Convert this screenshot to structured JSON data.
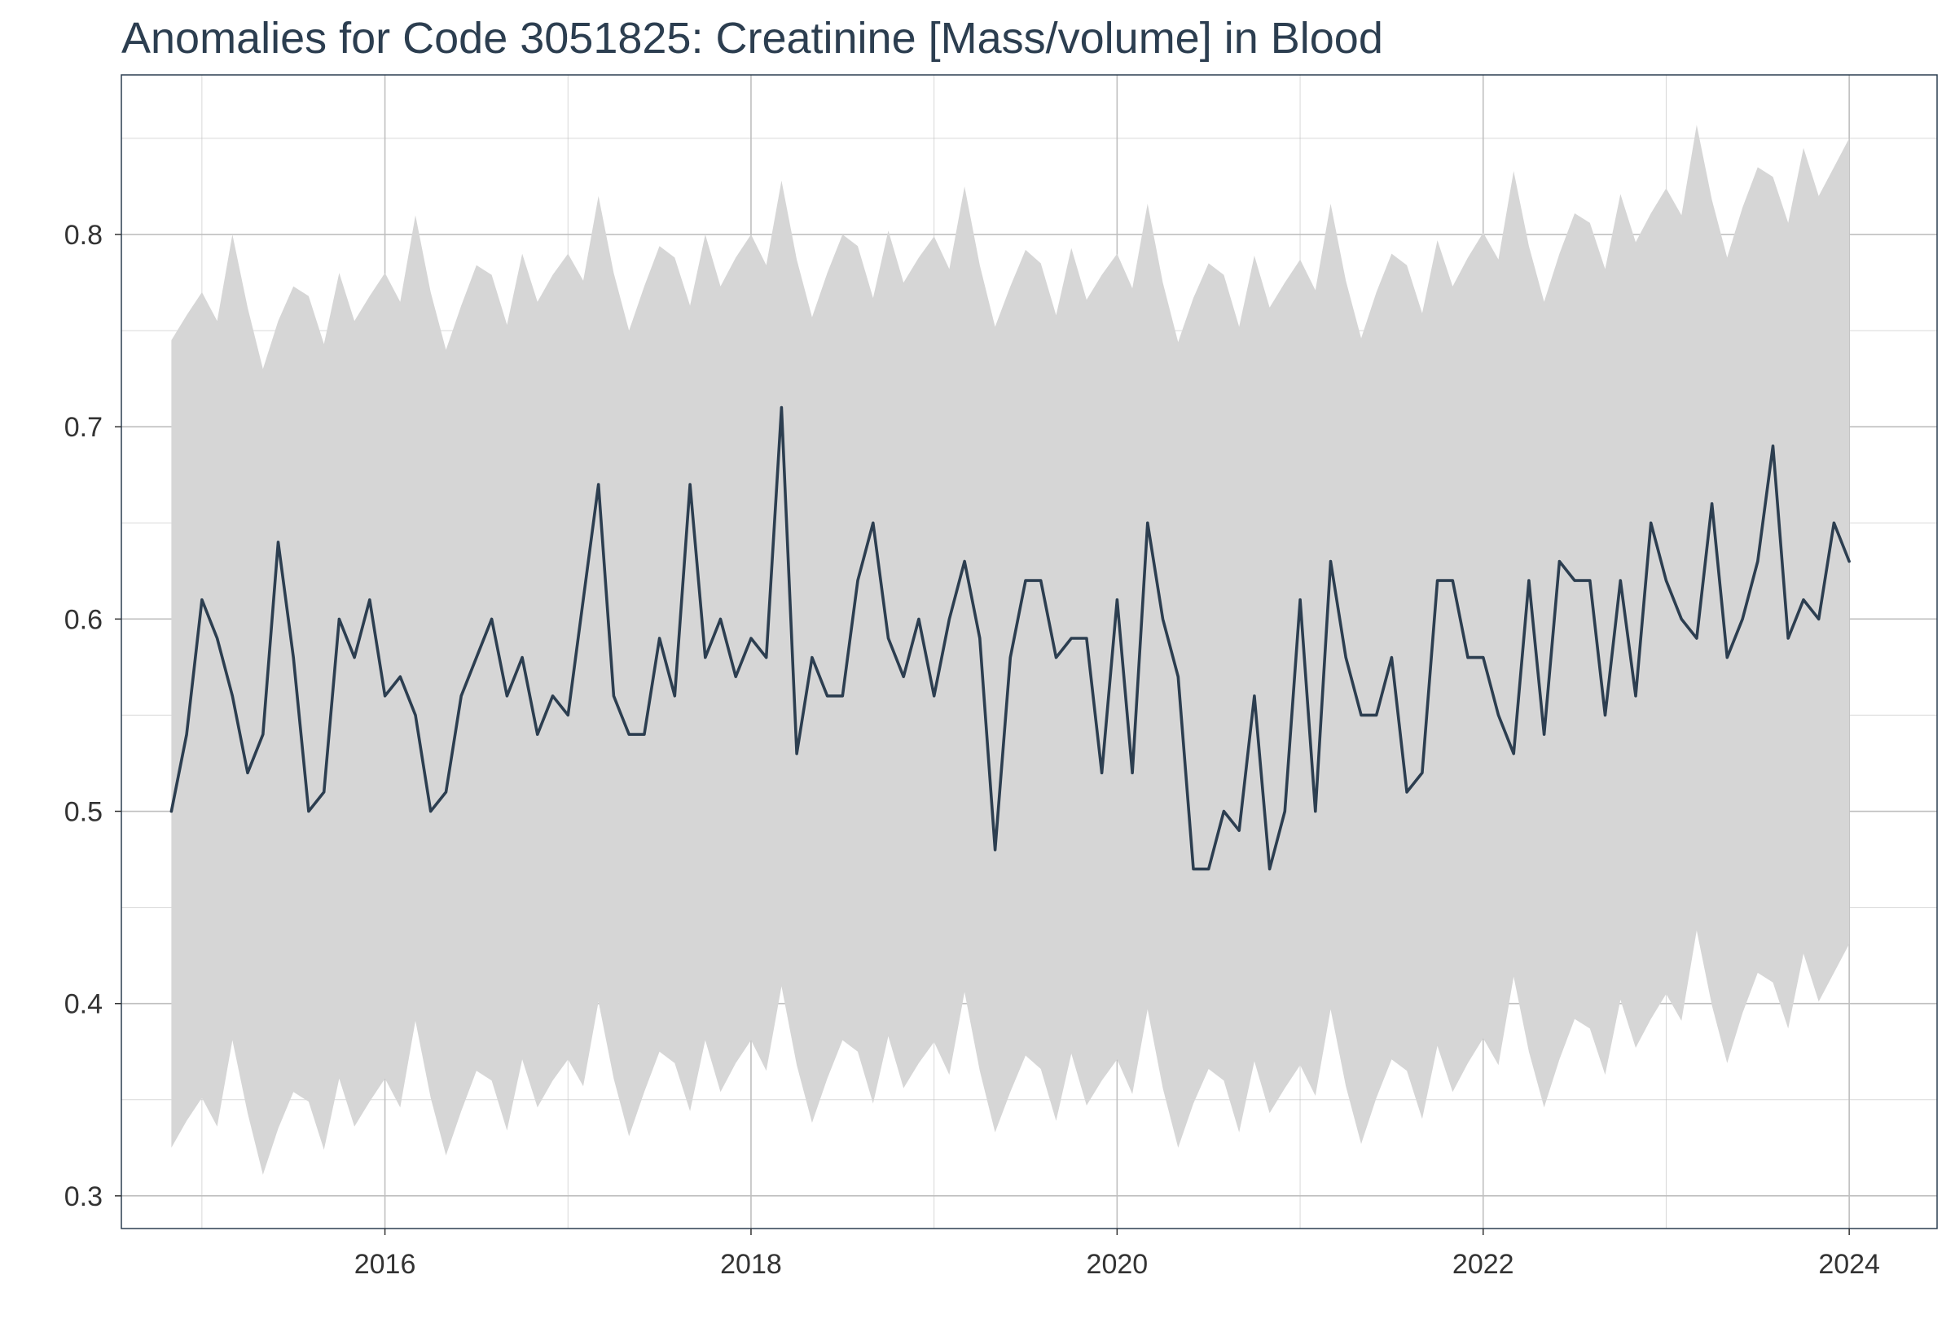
{
  "chart_data": {
    "type": "line",
    "title": "Anomalies for Code 3051825: Creatinine [Mass/volume] in Blood",
    "xlabel": "",
    "ylabel": "",
    "x_range": [
      2014.56,
      2024.48
    ],
    "y_range": [
      0.283,
      0.883
    ],
    "x_ticks": [
      {
        "value": 2016,
        "label": "2016"
      },
      {
        "value": 2018,
        "label": "2018"
      },
      {
        "value": 2020,
        "label": "2020"
      },
      {
        "value": 2022,
        "label": "2022"
      },
      {
        "value": 2024,
        "label": "2024"
      }
    ],
    "y_ticks": [
      {
        "value": 0.3,
        "label": "0.3"
      },
      {
        "value": 0.4,
        "label": "0.4"
      },
      {
        "value": 0.5,
        "label": "0.5"
      },
      {
        "value": 0.6,
        "label": "0.6"
      },
      {
        "value": 0.7,
        "label": "0.7"
      },
      {
        "value": 0.8,
        "label": "0.8"
      }
    ],
    "grid": true,
    "x_start": "2014-11",
    "x_interval": "monthly",
    "series": [
      {
        "kind": "line",
        "color": "#2c3e50",
        "values": [
          0.5,
          0.54,
          0.61,
          0.59,
          0.56,
          0.52,
          0.54,
          0.64,
          0.58,
          0.5,
          0.51,
          0.6,
          0.58,
          0.61,
          0.56,
          0.57,
          0.55,
          0.5,
          0.51,
          0.56,
          0.58,
          0.6,
          0.56,
          0.58,
          0.54,
          0.56,
          0.55,
          0.61,
          0.67,
          0.56,
          0.54,
          0.54,
          0.59,
          0.56,
          0.67,
          0.58,
          0.6,
          0.57,
          0.59,
          0.58,
          0.71,
          0.53,
          0.58,
          0.56,
          0.56,
          0.62,
          0.65,
          0.59,
          0.57,
          0.6,
          0.56,
          0.6,
          0.63,
          0.59,
          0.48,
          0.58,
          0.62,
          0.62,
          0.58,
          0.59,
          0.59,
          0.52,
          0.61,
          0.52,
          0.65,
          0.6,
          0.57,
          0.47,
          0.47,
          0.5,
          0.49,
          0.56,
          0.47,
          0.5,
          0.61,
          0.5,
          0.63,
          0.58,
          0.55,
          0.55,
          0.58,
          0.51,
          0.52,
          0.62,
          0.62,
          0.58,
          0.58,
          0.55,
          0.53,
          0.62,
          0.54,
          0.63,
          0.62,
          0.62,
          0.55,
          0.62,
          0.56,
          0.65,
          0.62,
          0.6,
          0.59,
          0.66,
          0.58,
          0.6,
          0.63,
          0.69,
          0.59,
          0.61,
          0.6,
          0.65,
          0.63
        ]
      },
      {
        "kind": "band",
        "color": "#d6d6d6",
        "upper": [
          0.745,
          0.758,
          0.77,
          0.755,
          0.8,
          0.762,
          0.73,
          0.755,
          0.773,
          0.768,
          0.743,
          0.78,
          0.755,
          0.768,
          0.78,
          0.765,
          0.81,
          0.77,
          0.74,
          0.763,
          0.784,
          0.779,
          0.753,
          0.79,
          0.765,
          0.779,
          0.79,
          0.776,
          0.82,
          0.78,
          0.75,
          0.773,
          0.794,
          0.788,
          0.763,
          0.8,
          0.773,
          0.788,
          0.8,
          0.784,
          0.828,
          0.787,
          0.757,
          0.78,
          0.8,
          0.794,
          0.767,
          0.802,
          0.775,
          0.788,
          0.799,
          0.782,
          0.825,
          0.784,
          0.752,
          0.773,
          0.792,
          0.785,
          0.758,
          0.793,
          0.766,
          0.779,
          0.79,
          0.772,
          0.816,
          0.775,
          0.744,
          0.767,
          0.785,
          0.779,
          0.752,
          0.789,
          0.762,
          0.775,
          0.787,
          0.771,
          0.816,
          0.776,
          0.746,
          0.77,
          0.79,
          0.784,
          0.759,
          0.797,
          0.773,
          0.788,
          0.801,
          0.787,
          0.833,
          0.794,
          0.765,
          0.79,
          0.811,
          0.806,
          0.782,
          0.821,
          0.796,
          0.811,
          0.824,
          0.81,
          0.857,
          0.818,
          0.788,
          0.814,
          0.835,
          0.83,
          0.806,
          0.845,
          0.82,
          0.835,
          0.85
        ],
        "lower": [
          0.325,
          0.339,
          0.351,
          0.336,
          0.381,
          0.343,
          0.311,
          0.335,
          0.354,
          0.349,
          0.324,
          0.361,
          0.336,
          0.349,
          0.361,
          0.346,
          0.391,
          0.351,
          0.321,
          0.344,
          0.365,
          0.36,
          0.334,
          0.371,
          0.346,
          0.36,
          0.371,
          0.357,
          0.401,
          0.361,
          0.331,
          0.354,
          0.375,
          0.369,
          0.344,
          0.381,
          0.354,
          0.369,
          0.381,
          0.365,
          0.409,
          0.368,
          0.338,
          0.361,
          0.381,
          0.375,
          0.348,
          0.383,
          0.356,
          0.369,
          0.38,
          0.363,
          0.406,
          0.365,
          0.333,
          0.354,
          0.373,
          0.366,
          0.339,
          0.374,
          0.347,
          0.36,
          0.371,
          0.353,
          0.397,
          0.356,
          0.325,
          0.348,
          0.366,
          0.36,
          0.333,
          0.37,
          0.343,
          0.356,
          0.368,
          0.352,
          0.397,
          0.357,
          0.327,
          0.351,
          0.371,
          0.365,
          0.34,
          0.378,
          0.354,
          0.369,
          0.382,
          0.368,
          0.414,
          0.375,
          0.346,
          0.371,
          0.392,
          0.387,
          0.363,
          0.402,
          0.377,
          0.392,
          0.405,
          0.391,
          0.438,
          0.399,
          0.369,
          0.395,
          0.416,
          0.411,
          0.387,
          0.426,
          0.401,
          0.416,
          0.431
        ]
      }
    ],
    "colors": {
      "line": "#2c3e50",
      "band": "#d6d6d6",
      "grid": "#bfbfbf",
      "panel_border": "#2c3e50",
      "title": "#2c3e50"
    }
  }
}
